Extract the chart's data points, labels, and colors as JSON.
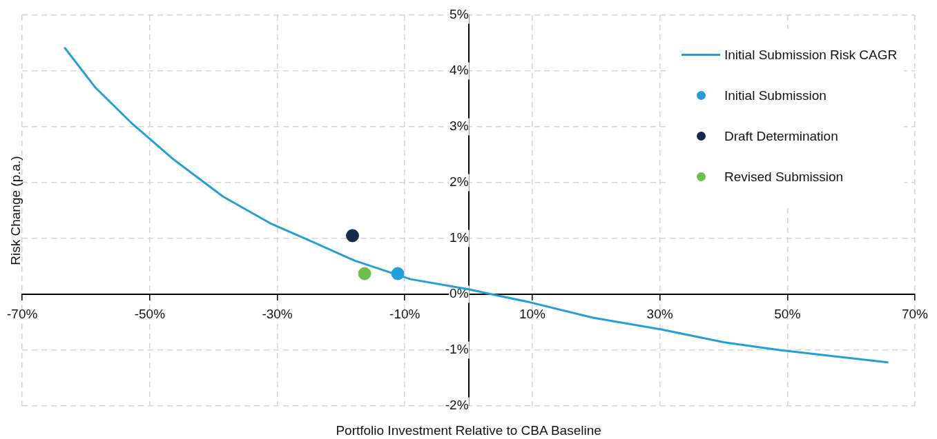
{
  "chart_data": {
    "type": "line",
    "xlabel": "Portfolio Investment Relative to CBA Baseline",
    "ylabel": "Risk Change (p.a.)",
    "xlim": [
      -70,
      70
    ],
    "xticks": [
      {
        "value": -70,
        "label": "-70%"
      },
      {
        "value": -50,
        "label": "-50%"
      },
      {
        "value": -30,
        "label": "-30%"
      },
      {
        "value": -10,
        "label": "-10%"
      },
      {
        "value": 10,
        "label": "10%"
      },
      {
        "value": 30,
        "label": "30%"
      },
      {
        "value": 50,
        "label": "50%"
      },
      {
        "value": 70,
        "label": "70%"
      }
    ],
    "ylim": [
      -2,
      5
    ],
    "yticks": [
      {
        "value": -2,
        "label": "-2%"
      },
      {
        "value": -1,
        "label": "-1%"
      },
      {
        "value": 0,
        "label": "0%"
      },
      {
        "value": 1,
        "label": "1%"
      },
      {
        "value": 2,
        "label": "2%"
      },
      {
        "value": 3,
        "label": "3%"
      },
      {
        "value": 4,
        "label": "4%"
      },
      {
        "value": 5,
        "label": "5%"
      }
    ],
    "grid": true,
    "legend": "top right",
    "marker": "circle",
    "series": [
      {
        "name": "Initial Submission Risk CAGR",
        "type": "line",
        "marker": "none",
        "color": "#229fd9",
        "x": [
          -63.3,
          -58.5,
          -52.7,
          -46.2,
          -38.5,
          -30.9,
          -24.3,
          -17.8,
          -9.1,
          0,
          4,
          9.5,
          19.5,
          30.2,
          40.1,
          48.8,
          54.3,
          65.7
        ],
        "values": [
          4.41,
          3.7,
          3.05,
          2.41,
          1.75,
          1.26,
          0.93,
          0.6,
          0.27,
          0.09,
          -0.01,
          -0.14,
          -0.42,
          -0.63,
          -0.86,
          -1.0,
          -1.07,
          -1.22
        ]
      },
      {
        "name": "Initial Submission",
        "type": "scatter",
        "color": "#229fd9",
        "x": [
          -11.1
        ],
        "values": [
          0.37
        ]
      },
      {
        "name": "Draft Determination",
        "type": "scatter",
        "color": "#17294d",
        "x": [
          -18.2
        ],
        "values": [
          1.05
        ]
      },
      {
        "name": "Revised Submission",
        "type": "scatter",
        "color": "#6dbf4b",
        "x": [
          -16.3
        ],
        "values": [
          0.37
        ]
      }
    ]
  }
}
